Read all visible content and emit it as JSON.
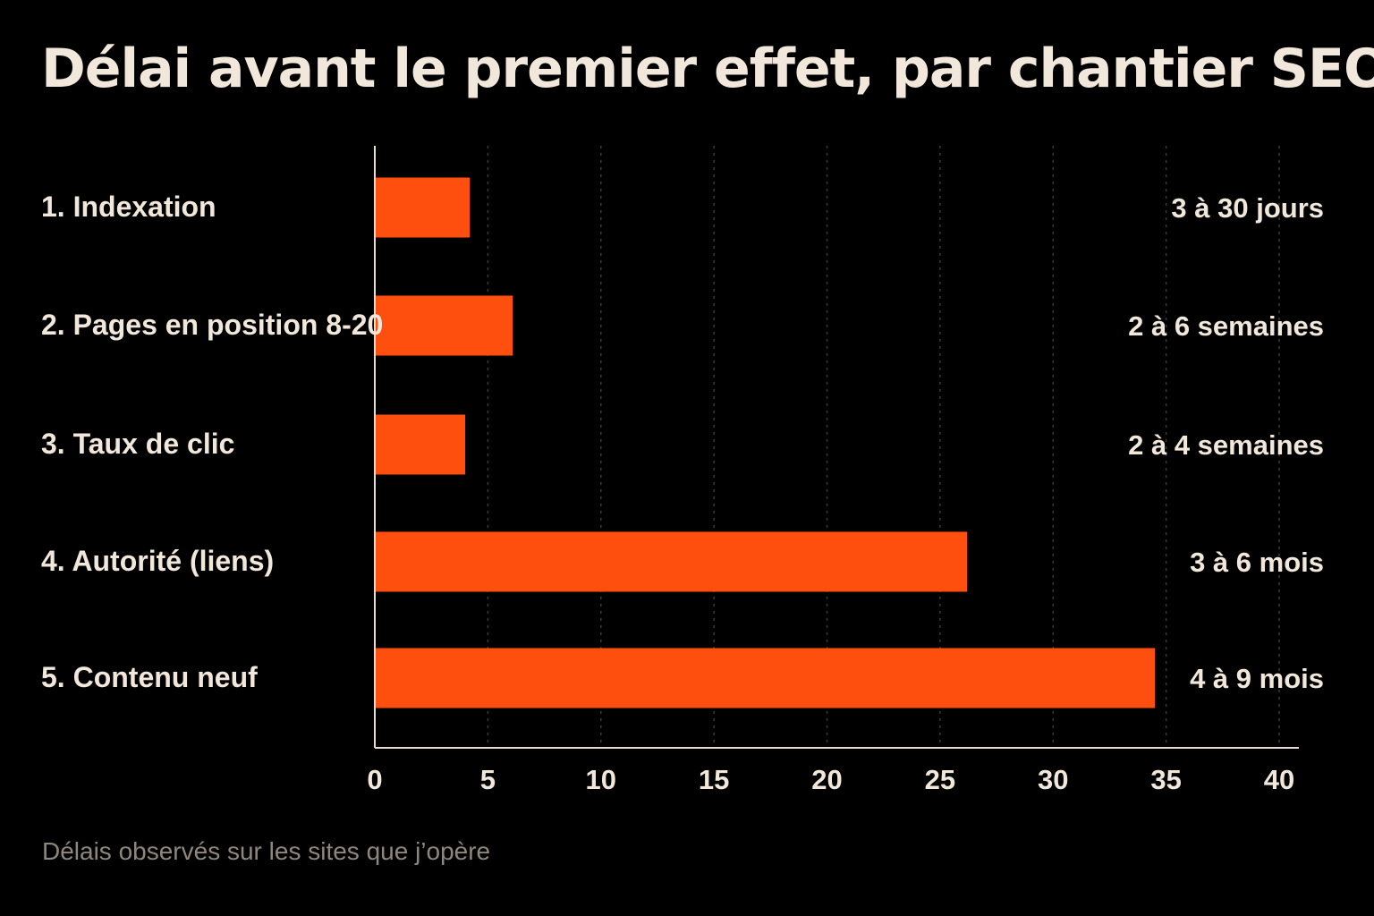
{
  "chart_data": {
    "type": "bar",
    "orientation": "horizontal",
    "title": "Délai avant le premier effet, par chantier SEO",
    "caption": "Délais observés sur les sites que j’opère",
    "categories": [
      "1. Indexation",
      "2. Pages en position 8-20",
      "3. Taux de clic",
      "4. Autorité (liens)",
      "5. Contenu neuf"
    ],
    "values": [
      4.2,
      6.1,
      4.0,
      26.2,
      34.5
    ],
    "range_labels": [
      "3 à 30 jours",
      "2 à 6 semaines",
      "2 à 4 semaines",
      "3 à 6 mois",
      "4 à 9 mois"
    ],
    "xlim": [
      0,
      40
    ],
    "xticks": [
      "0",
      "5",
      "10",
      "15",
      "20",
      "25",
      "30",
      "35",
      "40"
    ],
    "grid": "vertical dashed",
    "colors": {
      "bar": "#ff4f0f",
      "background": "#000000",
      "text": "#f1e7da",
      "caption": "#8f877d",
      "axis": "#e6ddd0",
      "grid": "#3a3a3a"
    }
  }
}
